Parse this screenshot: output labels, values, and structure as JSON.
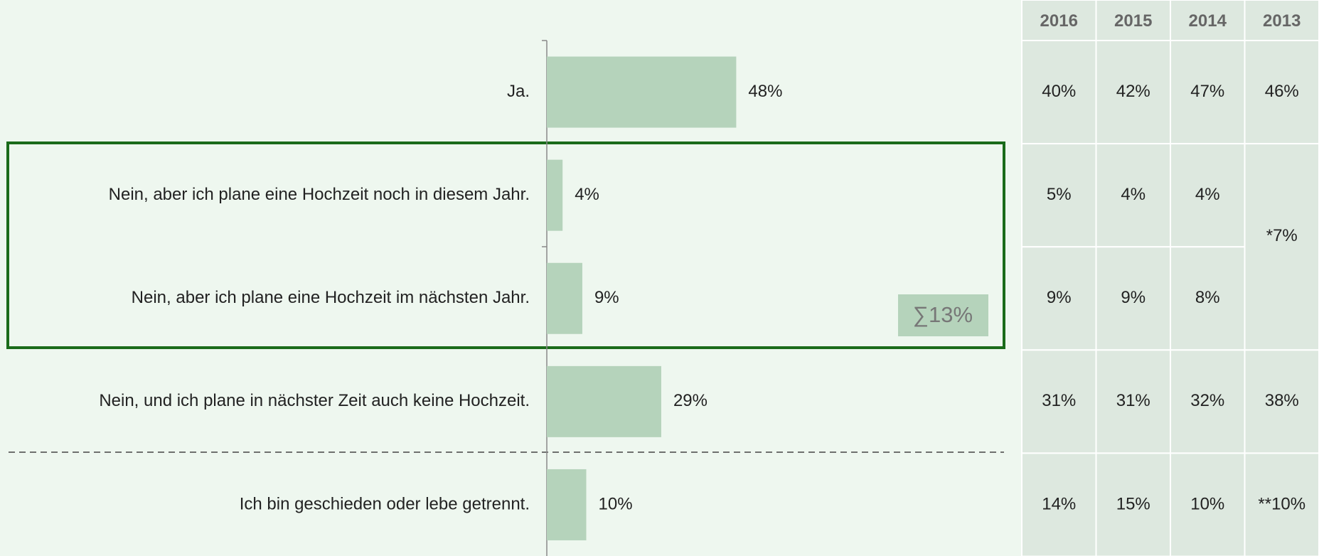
{
  "chart_data": {
    "type": "bar",
    "categories": [
      "Ja.",
      "Nein, aber ich plane eine Hochzeit noch in diesem Jahr.",
      "Nein, aber ich plane eine Hochzeit im nächsten Jahr.",
      "Nein, und ich plane in nächster Zeit auch keine Hochzeit.",
      "Ich bin geschieden oder lebe getrennt."
    ],
    "values": [
      48,
      4,
      9,
      29,
      10
    ],
    "value_labels": [
      "48%",
      "4%",
      "9%",
      "29%",
      "10%"
    ],
    "color": "#b5d3bb",
    "annotation": "∑13%"
  },
  "table": {
    "columns": [
      "2016",
      "2015",
      "2014",
      "2013"
    ],
    "rows": [
      [
        "40%",
        "42%",
        "47%",
        "46%"
      ],
      [
        "5%",
        "4%",
        "4%",
        "*7%"
      ],
      [
        "9%",
        "9%",
        "8%"
      ],
      [
        "31%",
        "31%",
        "32%",
        "38%"
      ],
      [
        "14%",
        "15%",
        "10%",
        "**10%"
      ]
    ]
  }
}
